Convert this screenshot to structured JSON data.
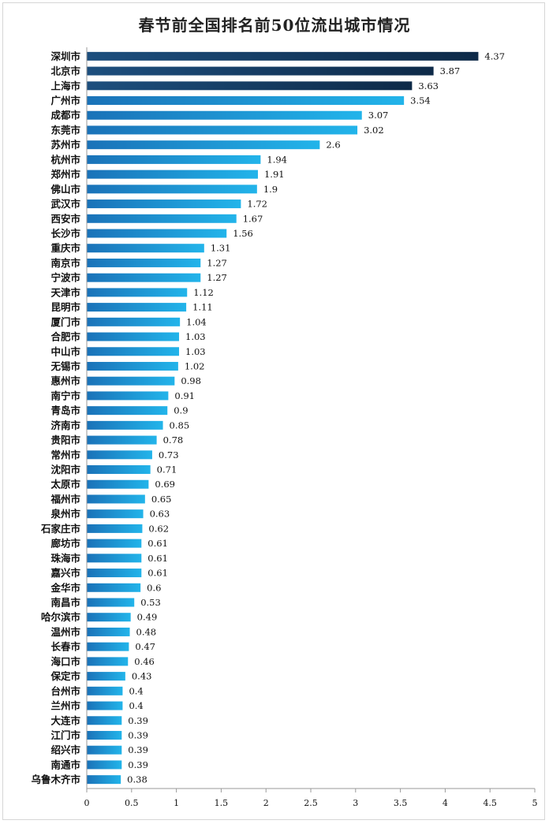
{
  "chart_data": {
    "type": "bar",
    "orientation": "horizontal",
    "title": "春节前全国排名前50位流出城市情况",
    "xlabel": "",
    "ylabel": "",
    "xlim": [
      0,
      5
    ],
    "xticks": [
      "0",
      "0.5",
      "1",
      "1.5",
      "2",
      "2.5",
      "3",
      "3.5",
      "4",
      "4.5",
      "5"
    ],
    "grid": false,
    "legend": "none",
    "colors": {
      "dark": "#0e2a48",
      "mid": "#1a72b8",
      "light": "#22b4ea",
      "axis": "#9a9a9a"
    },
    "categories": [
      "深圳市",
      "北京市",
      "上海市",
      "广州市",
      "成都市",
      "东莞市",
      "苏州市",
      "杭州市",
      "郑州市",
      "佛山市",
      "武汉市",
      "西安市",
      "长沙市",
      "重庆市",
      "南京市",
      "宁波市",
      "天津市",
      "昆明市",
      "厦门市",
      "合肥市",
      "中山市",
      "无锡市",
      "惠州市",
      "南宁市",
      "青岛市",
      "济南市",
      "贵阳市",
      "常州市",
      "沈阳市",
      "太原市",
      "福州市",
      "泉州市",
      "石家庄市",
      "廊坊市",
      "珠海市",
      "嘉兴市",
      "金华市",
      "南昌市",
      "哈尔滨市",
      "温州市",
      "长春市",
      "海口市",
      "保定市",
      "台州市",
      "兰州市",
      "大连市",
      "江门市",
      "绍兴市",
      "南通市",
      "乌鲁木齐市"
    ],
    "values": [
      4.37,
      3.87,
      3.63,
      3.54,
      3.07,
      3.02,
      2.6,
      1.94,
      1.91,
      1.9,
      1.72,
      1.67,
      1.56,
      1.31,
      1.27,
      1.27,
      1.12,
      1.11,
      1.04,
      1.03,
      1.03,
      1.02,
      0.98,
      0.91,
      0.9,
      0.85,
      0.78,
      0.73,
      0.71,
      0.69,
      0.65,
      0.63,
      0.62,
      0.61,
      0.61,
      0.61,
      0.6,
      0.53,
      0.49,
      0.48,
      0.47,
      0.46,
      0.43,
      0.4,
      0.4,
      0.39,
      0.39,
      0.39,
      0.39,
      0.38
    ],
    "value_labels": [
      "4.37",
      "3.87",
      "3.63",
      "3.54",
      "3.07",
      "3.02",
      "2.6",
      "1.94",
      "1.91",
      "1.9",
      "1.72",
      "1.67",
      "1.56",
      "1.31",
      "1.27",
      "1.27",
      "1.12",
      "1.11",
      "1.04",
      "1.03",
      "1.03",
      "1.02",
      "0.98",
      "0.91",
      "0.9",
      "0.85",
      "0.78",
      "0.73",
      "0.71",
      "0.69",
      "0.65",
      "0.63",
      "0.62",
      "0.61",
      "0.61",
      "0.61",
      "0.6",
      "0.53",
      "0.49",
      "0.48",
      "0.47",
      "0.46",
      "0.43",
      "0.4",
      "0.4",
      "0.39",
      "0.39",
      "0.39",
      "0.39",
      "0.38"
    ]
  }
}
